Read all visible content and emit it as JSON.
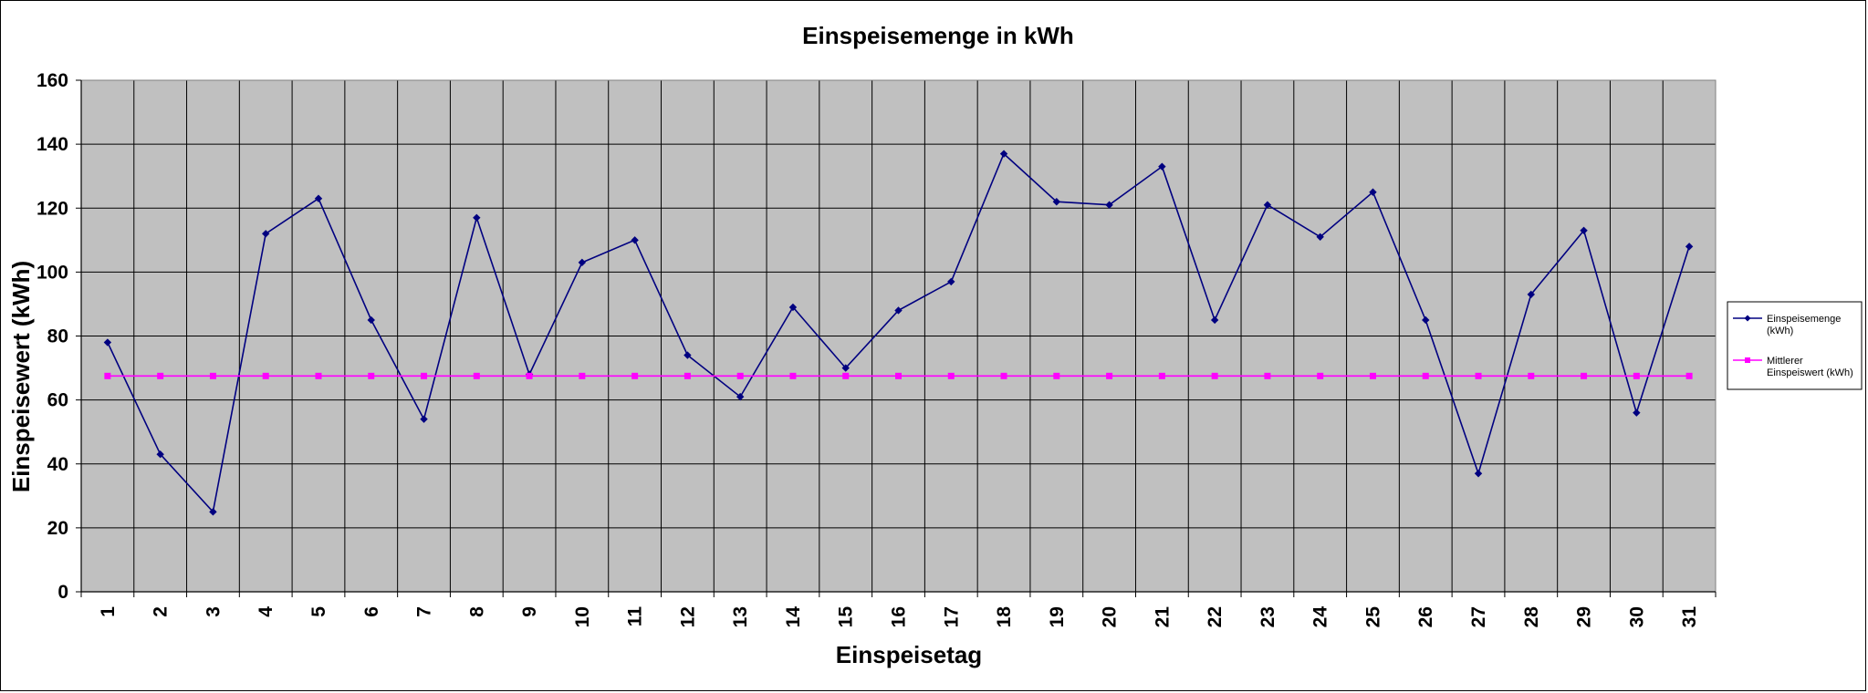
{
  "chart_data": {
    "type": "line",
    "title": "Einspeisemenge in kWh",
    "xlabel": "Einspeisetag",
    "ylabel": "Einspeisewert  (kWh)",
    "categories": [
      "1",
      "2",
      "3",
      "4",
      "5",
      "6",
      "7",
      "8",
      "9",
      "10",
      "11",
      "12",
      "13",
      "14",
      "15",
      "16",
      "17",
      "18",
      "19",
      "20",
      "21",
      "22",
      "23",
      "24",
      "25",
      "26",
      "27",
      "28",
      "29",
      "30",
      "31"
    ],
    "ylim": [
      0,
      160
    ],
    "yticks": [
      0,
      20,
      40,
      60,
      80,
      100,
      120,
      140,
      160
    ],
    "grid": true,
    "legend_position": "right",
    "plot_background": "#c0c0c0",
    "series": [
      {
        "name": "Einspeisemenge (kWh)",
        "legend_lines": [
          "Einspeisemenge",
          "(kWh)"
        ],
        "color": "#000080",
        "marker": "diamond",
        "values": [
          78,
          43,
          25,
          112,
          123,
          85,
          54,
          117,
          68,
          103,
          110,
          74,
          61,
          89,
          70,
          88,
          97,
          137,
          122,
          121,
          133,
          85,
          121,
          111,
          125,
          85,
          37,
          93,
          113,
          56,
          108
        ]
      },
      {
        "name": "Mittlerer Einspeiswert (kWh)",
        "legend_lines": [
          "Mittlerer",
          "Einspeiswert (kWh)"
        ],
        "color": "#ff00ff",
        "marker": "square",
        "values": [
          67.5,
          67.5,
          67.5,
          67.5,
          67.5,
          67.5,
          67.5,
          67.5,
          67.5,
          67.5,
          67.5,
          67.5,
          67.5,
          67.5,
          67.5,
          67.5,
          67.5,
          67.5,
          67.5,
          67.5,
          67.5,
          67.5,
          67.5,
          67.5,
          67.5,
          67.5,
          67.5,
          67.5,
          67.5,
          67.5,
          67.5
        ]
      }
    ]
  }
}
